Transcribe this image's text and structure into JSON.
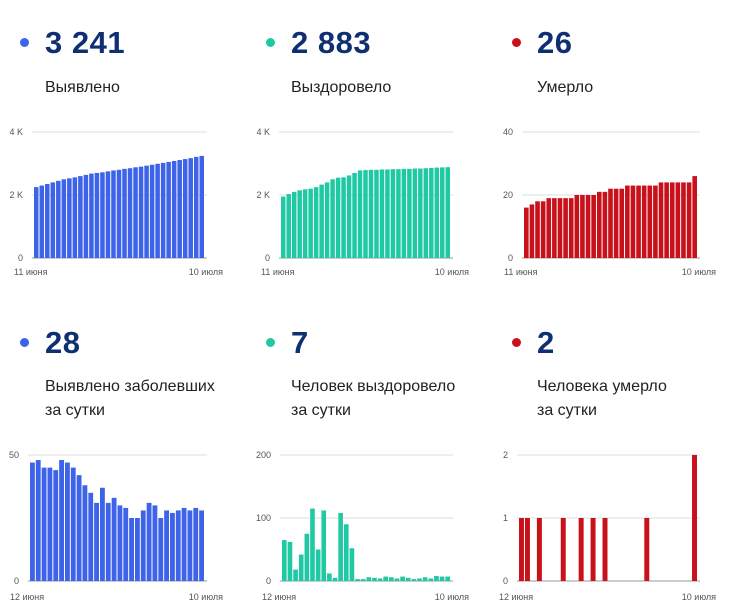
{
  "panels": [
    {
      "number": "3 241",
      "label1": "Выявлено",
      "label2": "",
      "color": "#3d63e8",
      "chart_data": {
        "type": "bar",
        "title": "Выявлено",
        "ytick_labels": [
          "0",
          "2 K",
          "4 K"
        ],
        "yticks": [
          0,
          2000,
          4000
        ],
        "ylim": [
          0,
          4000
        ],
        "xtick_labels": [
          "11 июня",
          "10 июля"
        ],
        "values": [
          2250,
          2300,
          2350,
          2400,
          2450,
          2500,
          2530,
          2560,
          2600,
          2640,
          2680,
          2700,
          2720,
          2750,
          2780,
          2800,
          2830,
          2850,
          2880,
          2900,
          2930,
          2960,
          2990,
          3020,
          3050,
          3080,
          3110,
          3140,
          3170,
          3210,
          3241
        ]
      }
    },
    {
      "number": "2 883",
      "label1": "Выздоровело",
      "label2": "",
      "color": "#1fc9a4",
      "chart_data": {
        "type": "bar",
        "title": "Выздоровело",
        "ytick_labels": [
          "0",
          "2 K",
          "4 K"
        ],
        "yticks": [
          0,
          2000,
          4000
        ],
        "ylim": [
          0,
          4000
        ],
        "xtick_labels": [
          "11 июня",
          "10 июля"
        ],
        "values": [
          1950,
          2030,
          2100,
          2150,
          2180,
          2200,
          2250,
          2330,
          2400,
          2500,
          2550,
          2560,
          2620,
          2700,
          2780,
          2790,
          2800,
          2800,
          2810,
          2810,
          2820,
          2820,
          2830,
          2830,
          2840,
          2840,
          2850,
          2860,
          2870,
          2876,
          2883
        ]
      }
    },
    {
      "number": "26",
      "label1": "Умерло",
      "label2": "",
      "color": "#c8111a",
      "chart_data": {
        "type": "bar",
        "title": "Умерло",
        "ytick_labels": [
          "0",
          "20",
          "40"
        ],
        "yticks": [
          0,
          20,
          40
        ],
        "ylim": [
          0,
          40
        ],
        "xtick_labels": [
          "11 июня",
          "10 июля"
        ],
        "values": [
          16,
          17,
          18,
          18,
          19,
          19,
          19,
          19,
          19,
          20,
          20,
          20,
          20,
          21,
          21,
          22,
          22,
          22,
          23,
          23,
          23,
          23,
          23,
          23,
          24,
          24,
          24,
          24,
          24,
          24,
          26
        ]
      }
    },
    {
      "number": "28",
      "label1": "Выявлено заболевших",
      "label2": "за сутки",
      "color": "#3d63e8",
      "chart_data": {
        "type": "bar",
        "title": "Выявлено заболевших за сутки",
        "ytick_labels": [
          "0",
          "50"
        ],
        "yticks": [
          0,
          50
        ],
        "ylim": [
          0,
          50
        ],
        "xtick_labels": [
          "12 июня",
          "10 июля"
        ],
        "values": [
          47,
          48,
          45,
          45,
          44,
          48,
          47,
          45,
          42,
          38,
          35,
          31,
          37,
          31,
          33,
          30,
          29,
          25,
          25,
          28,
          31,
          30,
          25,
          28,
          27,
          28,
          29,
          28,
          29,
          28
        ]
      }
    },
    {
      "number": "7",
      "label1": "Человек выздоровело",
      "label2": "за сутки",
      "color": "#1fc9a4",
      "chart_data": {
        "type": "bar",
        "title": "Человек выздоровело за сутки",
        "ytick_labels": [
          "0",
          "100",
          "200"
        ],
        "yticks": [
          0,
          100,
          200
        ],
        "ylim": [
          0,
          200
        ],
        "xtick_labels": [
          "12 июня",
          "10 июля"
        ],
        "values": [
          65,
          62,
          18,
          42,
          75,
          115,
          50,
          112,
          12,
          5,
          108,
          90,
          52,
          3,
          3,
          6,
          5,
          4,
          7,
          6,
          4,
          7,
          5,
          3,
          4,
          6,
          4,
          8,
          7,
          7
        ]
      }
    },
    {
      "number": "2",
      "label1": "Человека умерло",
      "label2": "за сутки",
      "color": "#c8111a",
      "chart_data": {
        "type": "bar",
        "title": "Человека умерло за сутки",
        "ytick_labels": [
          "0",
          "1",
          "2"
        ],
        "yticks": [
          0,
          1,
          2
        ],
        "ylim": [
          0,
          2
        ],
        "xtick_labels": [
          "12 июня",
          "10 июля"
        ],
        "values": [
          1,
          1,
          0,
          1,
          0,
          0,
          0,
          1,
          0,
          0,
          1,
          0,
          1,
          0,
          1,
          0,
          0,
          0,
          0,
          0,
          0,
          1,
          0,
          0,
          0,
          0,
          0,
          0,
          0,
          2
        ]
      }
    }
  ]
}
